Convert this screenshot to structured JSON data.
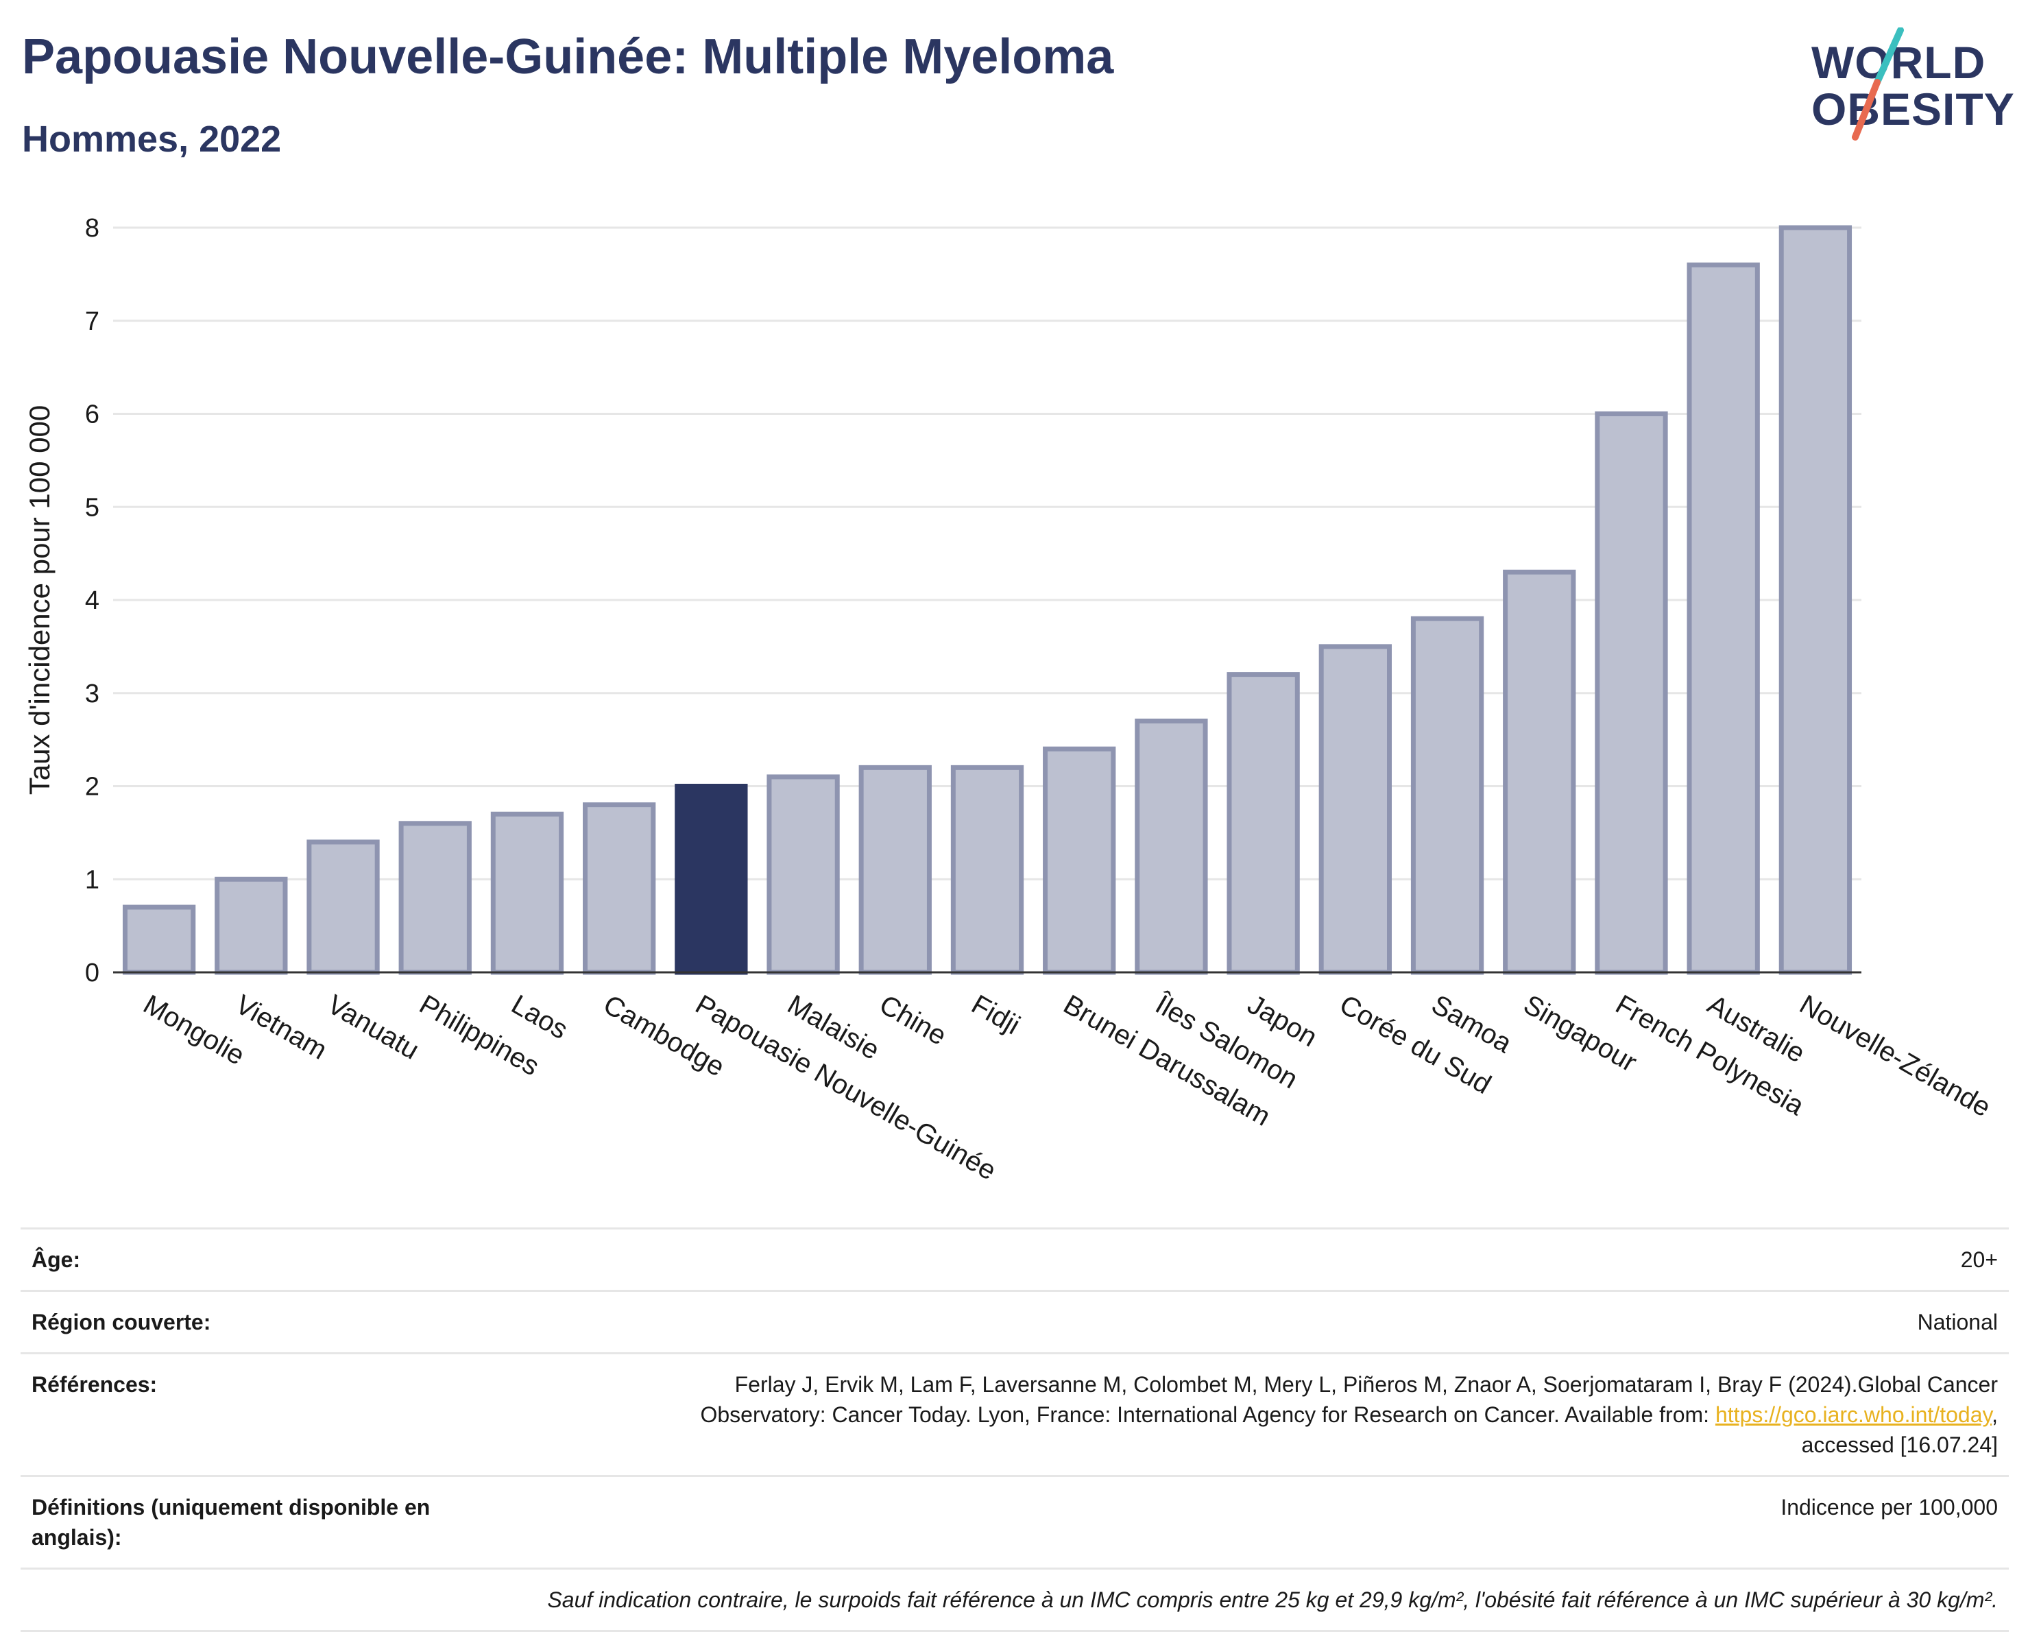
{
  "header": {
    "title": "Papouasie Nouvelle-Guinée: Multiple Myeloma",
    "subtitle": "Hommes, 2022"
  },
  "logo": {
    "line1": "WORLD",
    "line2": "OBESITY",
    "slash_colors": [
      "#3bbfbf",
      "#e86a50"
    ]
  },
  "colors": {
    "bar": "#bcc0d0",
    "bar_stroke": "#8e94b0",
    "highlight": "#2b3661",
    "grid": "#e6e6e6",
    "axis": "#333333"
  },
  "chart_data": {
    "type": "bar",
    "ylabel": "Taux d'incidence pour 100 000",
    "xlabel": "",
    "ylim": [
      0,
      8
    ],
    "yticks": [
      "0",
      "1",
      "2",
      "3",
      "4",
      "5",
      "6",
      "7",
      "8"
    ],
    "grid": true,
    "highlight_category": "Papouasie Nouvelle-Guinée",
    "categories": [
      "Mongolie",
      "Vietnam",
      "Vanuatu",
      "Philippines",
      "Laos",
      "Cambodge",
      "Papouasie Nouvelle-Guinée",
      "Malaisie",
      "Chine",
      "Fidji",
      "Brunei Darussalam",
      "Îles Salomon",
      "Japon",
      "Corée du Sud",
      "Samoa",
      "Singapour",
      "French Polynesia",
      "Australie",
      "Nouvelle-Zélande"
    ],
    "values": [
      0.7,
      1.0,
      1.4,
      1.6,
      1.7,
      1.8,
      2.0,
      2.1,
      2.2,
      2.2,
      2.4,
      2.7,
      3.2,
      3.5,
      3.8,
      4.3,
      6.0,
      7.6,
      8.0
    ]
  },
  "meta": {
    "age_label": "Âge:",
    "age_value": "20+",
    "region_label": "Région couverte:",
    "region_value": "National",
    "refs_label": "Références:",
    "refs_text_1": "Ferlay J, Ervik M, Lam F, Laversanne M, Colombet M, Mery L, Piñeros M, Znaor A, Soerjomataram I, Bray F (2024).Global Cancer",
    "refs_text_2": "Observatory: Cancer Today. Lyon, France: International Agency for Research on Cancer. Available from: ",
    "refs_link": "https://gco.iarc.who.int/today",
    "refs_text_3": ",",
    "refs_text_4": "accessed [16.07.24]",
    "defs_label": "Définitions (uniquement disponible en anglais):",
    "defs_value": "Indicence per 100,000",
    "note": "Sauf indication contraire, le surpoids fait référence à un IMC compris entre 25 kg et 29,9 kg/m², l'obésité fait référence à un IMC supérieur à 30 kg/m²."
  }
}
